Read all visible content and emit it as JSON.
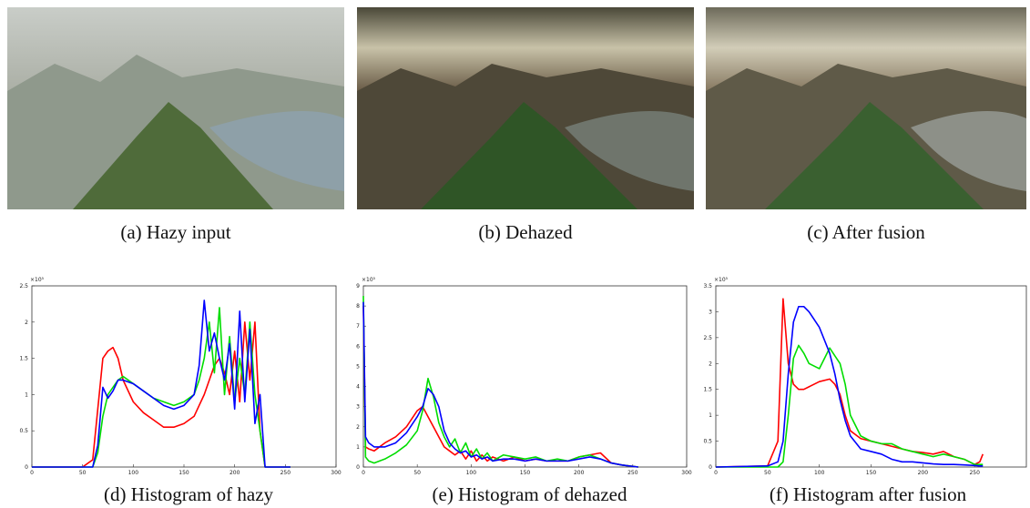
{
  "panels": [
    {
      "caption": "(a) Hazy input"
    },
    {
      "caption": "(b) Dehazed"
    },
    {
      "caption": "(c) After fusion"
    }
  ],
  "chart_data": [
    {
      "type": "line",
      "title": "(d) Histogram of hazy",
      "y_multiplier": "×10⁵",
      "x": [
        0,
        50,
        60,
        65,
        70,
        75,
        80,
        85,
        90,
        100,
        110,
        120,
        130,
        140,
        150,
        160,
        165,
        170,
        175,
        180,
        185,
        190,
        195,
        200,
        205,
        210,
        215,
        220,
        225,
        230,
        240,
        255
      ],
      "series": [
        {
          "color": "#ff0000",
          "values": [
            0,
            0,
            0.1,
            0.8,
            1.5,
            1.6,
            1.65,
            1.5,
            1.2,
            0.9,
            0.75,
            0.65,
            0.55,
            0.55,
            0.6,
            0.7,
            0.85,
            1.0,
            1.2,
            1.4,
            1.5,
            1.3,
            1.0,
            1.6,
            0.9,
            2.0,
            1.2,
            2.0,
            0.5,
            0,
            0,
            0
          ]
        },
        {
          "color": "#00dd00",
          "values": [
            0,
            0,
            0,
            0.2,
            0.7,
            1.0,
            1.1,
            1.2,
            1.25,
            1.15,
            1.05,
            0.95,
            0.9,
            0.85,
            0.9,
            1.0,
            1.2,
            1.5,
            2.0,
            1.3,
            2.2,
            1.0,
            1.8,
            0.9,
            1.5,
            1.0,
            2.0,
            1.0,
            0.5,
            0,
            0,
            0
          ]
        },
        {
          "color": "#0000ff",
          "values": [
            0,
            0,
            0,
            0.3,
            1.1,
            0.95,
            1.05,
            1.2,
            1.2,
            1.15,
            1.05,
            0.95,
            0.85,
            0.8,
            0.85,
            1.0,
            1.4,
            2.3,
            1.6,
            1.85,
            1.5,
            1.2,
            1.7,
            0.8,
            2.15,
            0.9,
            1.9,
            0.6,
            1.0,
            0,
            0,
            0
          ]
        }
      ],
      "xlim": [
        0,
        300
      ],
      "xticks": [
        0,
        50,
        100,
        150,
        200,
        250,
        300
      ],
      "ylim": [
        0,
        2.5
      ],
      "yticks": [
        0,
        0.5,
        1,
        1.5,
        2,
        2.5
      ]
    },
    {
      "type": "line",
      "title": "(e) Histogram of dehazed",
      "y_multiplier": "×10⁵",
      "x": [
        0,
        2,
        5,
        10,
        20,
        30,
        40,
        50,
        55,
        60,
        65,
        70,
        75,
        80,
        85,
        90,
        95,
        100,
        105,
        110,
        115,
        120,
        130,
        140,
        150,
        160,
        170,
        180,
        190,
        200,
        210,
        220,
        230,
        240,
        255
      ],
      "series": [
        {
          "color": "#ff0000",
          "values": [
            8,
            1,
            0.9,
            0.8,
            1.2,
            1.5,
            2,
            2.8,
            3.0,
            2.5,
            2.0,
            1.5,
            1.0,
            0.8,
            0.6,
            0.8,
            0.4,
            0.8,
            0.3,
            0.6,
            0.3,
            0.5,
            0.3,
            0.5,
            0.3,
            0.4,
            0.3,
            0.3,
            0.3,
            0.5,
            0.6,
            0.7,
            0.2,
            0.1,
            0
          ]
        },
        {
          "color": "#00dd00",
          "values": [
            8.5,
            0.5,
            0.3,
            0.2,
            0.4,
            0.7,
            1.1,
            1.8,
            2.8,
            4.4,
            3.5,
            2.2,
            1.5,
            1.0,
            1.4,
            0.7,
            1.2,
            0.5,
            0.9,
            0.4,
            0.7,
            0.3,
            0.6,
            0.5,
            0.4,
            0.5,
            0.3,
            0.4,
            0.3,
            0.5,
            0.6,
            0.4,
            0.2,
            0.1,
            0
          ]
        },
        {
          "color": "#0000ff",
          "values": [
            8.2,
            1.5,
            1.2,
            1.0,
            1.0,
            1.2,
            1.7,
            2.5,
            3.0,
            3.9,
            3.6,
            3.0,
            1.8,
            1.2,
            0.9,
            0.7,
            0.8,
            0.5,
            0.6,
            0.4,
            0.5,
            0.3,
            0.4,
            0.4,
            0.3,
            0.4,
            0.3,
            0.3,
            0.3,
            0.4,
            0.5,
            0.4,
            0.2,
            0.1,
            0
          ]
        }
      ],
      "xlim": [
        0,
        300
      ],
      "xticks": [
        0,
        50,
        100,
        150,
        200,
        250,
        300
      ],
      "ylim": [
        0,
        9
      ],
      "yticks": [
        0,
        1,
        2,
        3,
        4,
        5,
        6,
        7,
        8,
        9
      ]
    },
    {
      "type": "line",
      "title": "(f) Histogram after fusion",
      "y_multiplier": "×10⁵",
      "x": [
        0,
        50,
        60,
        65,
        70,
        75,
        80,
        85,
        90,
        100,
        110,
        115,
        120,
        125,
        130,
        140,
        150,
        160,
        170,
        180,
        190,
        200,
        210,
        220,
        230,
        240,
        250,
        255,
        258
      ],
      "series": [
        {
          "color": "#ff0000",
          "values": [
            0,
            0.02,
            0.5,
            3.25,
            2.0,
            1.6,
            1.5,
            1.5,
            1.55,
            1.65,
            1.7,
            1.6,
            1.4,
            1.0,
            0.7,
            0.55,
            0.5,
            0.45,
            0.4,
            0.35,
            0.3,
            0.28,
            0.25,
            0.3,
            0.2,
            0.15,
            0.05,
            0.1,
            0.25
          ]
        },
        {
          "color": "#00dd00",
          "values": [
            0,
            0,
            0,
            0.1,
            1.0,
            2.1,
            2.35,
            2.2,
            2.0,
            1.9,
            2.3,
            2.15,
            2.0,
            1.6,
            1.0,
            0.6,
            0.5,
            0.45,
            0.45,
            0.35,
            0.3,
            0.25,
            0.2,
            0.25,
            0.2,
            0.15,
            0.05,
            0.05,
            0.05
          ]
        },
        {
          "color": "#0000ff",
          "values": [
            0,
            0.02,
            0.1,
            0.5,
            1.8,
            2.8,
            3.1,
            3.1,
            3.0,
            2.7,
            2.2,
            1.8,
            1.3,
            0.9,
            0.6,
            0.35,
            0.3,
            0.25,
            0.15,
            0.1,
            0.1,
            0.08,
            0.06,
            0.05,
            0.05,
            0.04,
            0.03,
            0.02,
            0.02
          ]
        }
      ],
      "xlim": [
        0,
        300
      ],
      "xticks": [
        0,
        50,
        100,
        150,
        200,
        250
      ],
      "ylim": [
        0,
        3.5
      ],
      "yticks": [
        0,
        0.5,
        1,
        1.5,
        2,
        2.5,
        3,
        3.5
      ]
    }
  ]
}
